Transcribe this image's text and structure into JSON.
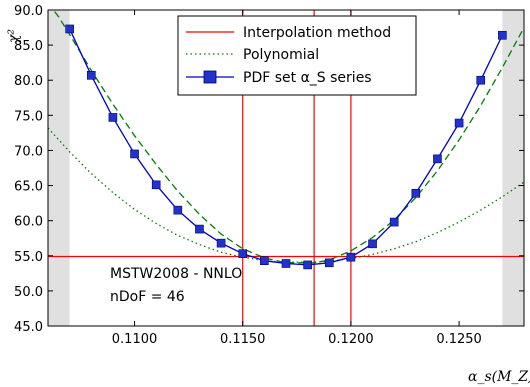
{
  "chart_data": {
    "type": "line",
    "xlabel": "α_s(M_Z)",
    "ylabel": "χ²",
    "xlim": [
      0.106,
      0.128
    ],
    "ylim": [
      45.0,
      90.0
    ],
    "x_ticks": [
      "0.1100",
      "0.1150",
      "0.1200",
      "0.1250"
    ],
    "x_tick_values": [
      0.11,
      0.115,
      0.12,
      0.125
    ],
    "y_ticks": [
      "45.0",
      "50.0",
      "55.0",
      "60.0",
      "65.0",
      "70.0",
      "75.0",
      "80.0",
      "85.0",
      "90.0"
    ],
    "y_tick_values": [
      45,
      50,
      55,
      60,
      65,
      70,
      75,
      80,
      85,
      90
    ],
    "grid": false,
    "legend_position": "top-center",
    "shaded_regions": [
      {
        "x_start": 0.106,
        "x_end": 0.107,
        "color": "#e0e0e0"
      },
      {
        "x_start": 0.127,
        "x_end": 0.128,
        "color": "#e0e0e0"
      }
    ],
    "series": [
      {
        "name": "Interpolation method",
        "color": "#ff0000",
        "style": "solid",
        "kind": "reference-lines",
        "vlines": [
          0.115,
          0.1183,
          0.12
        ],
        "hline": 54.9
      },
      {
        "name": "Polynomial",
        "color": "#008000",
        "style": "dotted",
        "x": [
          0.106,
          0.1065,
          0.107,
          0.108,
          0.109,
          0.11,
          0.111,
          0.112,
          0.113,
          0.114,
          0.115,
          0.116,
          0.117,
          0.1183,
          0.119,
          0.12,
          0.121,
          0.122,
          0.123,
          0.124,
          0.125,
          0.126,
          0.127,
          0.128
        ],
        "values": [
          73.2,
          71.5,
          69.8,
          66.7,
          64.0,
          61.6,
          59.6,
          57.9,
          56.6,
          55.5,
          54.8,
          54.3,
          54.1,
          54.1,
          54.2,
          54.6,
          55.2,
          56.0,
          57.0,
          58.3,
          59.8,
          61.5,
          63.4,
          65.5
        ]
      },
      {
        "name": "",
        "color": "#008000",
        "style": "dashed",
        "x": [
          0.106,
          0.1065,
          0.107,
          0.108,
          0.109,
          0.11,
          0.111,
          0.112,
          0.113,
          0.114,
          0.115,
          0.116,
          0.117,
          0.1183,
          0.119,
          0.12,
          0.121,
          0.122,
          0.123,
          0.124,
          0.125,
          0.126,
          0.127,
          0.128
        ],
        "values": [
          91.0,
          89.0,
          86.5,
          81.4,
          76.6,
          72.1,
          68.0,
          64.2,
          60.9,
          58.1,
          56.0,
          54.7,
          54.0,
          54.0,
          54.4,
          55.7,
          57.6,
          60.1,
          63.3,
          67.1,
          71.5,
          76.4,
          81.8,
          87.5
        ]
      },
      {
        "name": "PDF set α_S series",
        "color": "#0000cc",
        "marker_color": "#2233cc",
        "style": "solid-with-square-markers",
        "x": [
          0.107,
          0.108,
          0.109,
          0.11,
          0.111,
          0.112,
          0.113,
          0.114,
          0.115,
          0.116,
          0.117,
          0.118,
          0.119,
          0.12,
          0.121,
          0.122,
          0.123,
          0.124,
          0.125,
          0.126,
          0.127
        ],
        "values": [
          87.3,
          80.7,
          74.7,
          69.5,
          65.1,
          61.5,
          58.8,
          56.8,
          55.3,
          54.3,
          53.9,
          53.7,
          54.0,
          54.8,
          56.7,
          59.8,
          63.9,
          68.8,
          73.9,
          80.0,
          86.4
        ]
      }
    ],
    "legend": [
      {
        "label": "Interpolation method",
        "color": "#ff0000",
        "style": "solid"
      },
      {
        "label": "Polynomial",
        "color": "#008000",
        "style": "dotted"
      },
      {
        "label": "PDF set α_S series",
        "color": "#0000cc",
        "style": "solid-with-square-markers"
      }
    ],
    "annotations": [
      "MSTW2008 - NNLO",
      "nDoF = 46"
    ]
  }
}
